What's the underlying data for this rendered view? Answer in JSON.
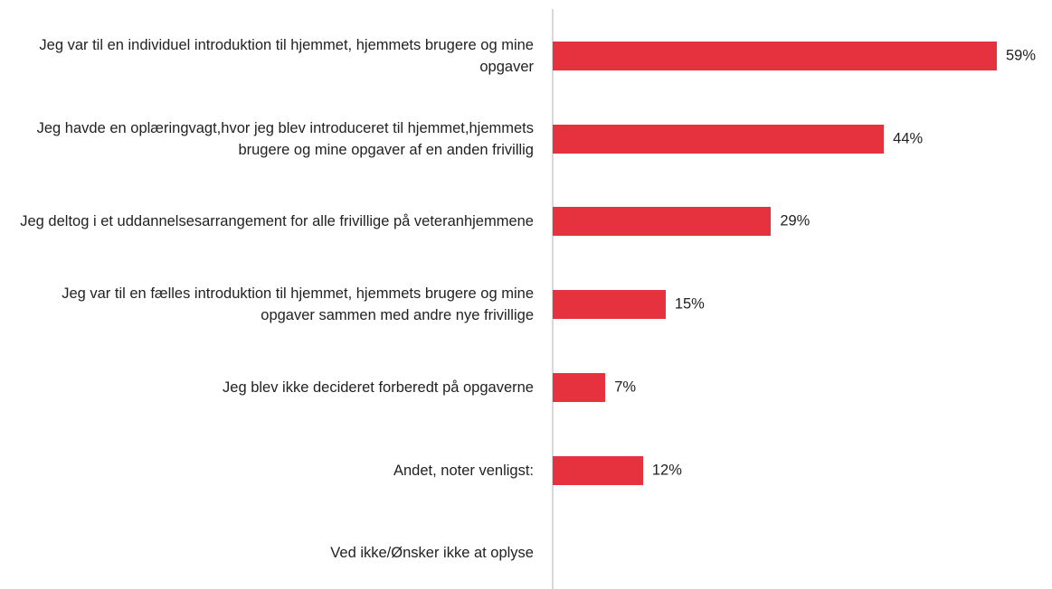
{
  "chart_data": {
    "type": "barh",
    "categories": [
      "Jeg var til en individuel introduktion til hjemmet, hjemmets brugere og mine opgaver",
      "Jeg havde en oplæringvagt,hvor jeg blev introduceret til hjemmet,hjemmets brugere og mine opgaver af en anden frivillig",
      "Jeg deltog i et uddannelsesarrangement for alle frivillige på veteranhjemmene",
      "Jeg var til en fælles introduktion til hjemmet, hjemmets brugere og mine opgaver sammen med andre nye frivillige",
      "Jeg blev ikke decideret forberedt på opgaverne",
      "Andet, noter venligst:",
      "Ved ikke/Ønsker ikke at oplyse"
    ],
    "values": [
      59,
      44,
      29,
      15,
      7,
      12,
      null
    ],
    "value_labels": [
      "59%",
      "44%",
      "29%",
      "15%",
      "7%",
      "12%",
      null
    ],
    "color": "#e5323e"
  }
}
